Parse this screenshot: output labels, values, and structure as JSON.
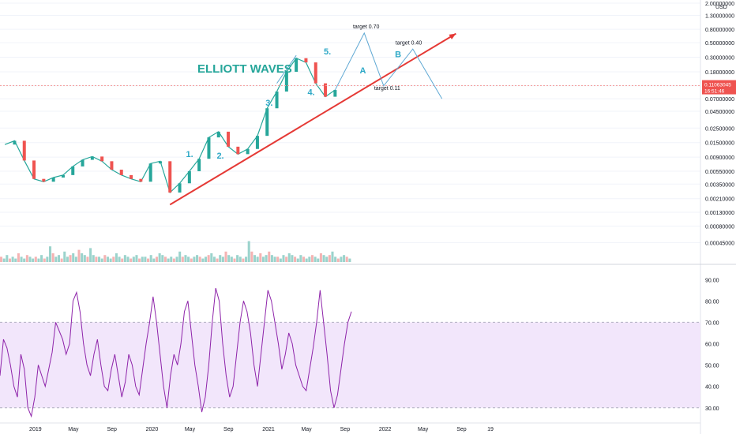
{
  "chart_data": [
    {
      "type": "line",
      "title": "",
      "annotation_title": "ELLIOTT WAVES",
      "y_scale": "log",
      "currency": "USD",
      "ylim": [
        0.0003,
        2.0
      ],
      "y_ticks": [
        "2.00000000",
        "1.30000000",
        "0.80000000",
        "0.50000000",
        "0.30000000",
        "0.18000000",
        "0.11000000",
        "0.07000000",
        "0.04500000",
        "0.02500000",
        "0.01500000",
        "0.00900000",
        "0.00550000",
        "0.00350000",
        "0.00210000",
        "0.00130000",
        "0.00080000",
        "0.00045000"
      ],
      "y_tick_values": [
        2.0,
        1.3,
        0.8,
        0.5,
        0.3,
        0.18,
        0.11,
        0.07,
        0.045,
        0.025,
        0.015,
        0.009,
        0.0055,
        0.0035,
        0.0021,
        0.0013,
        0.0008,
        0.00045
      ],
      "x_ticks": [
        "2019",
        "May",
        "Sep",
        "2020",
        "May",
        "Sep",
        "2021",
        "May",
        "Sep",
        "2022",
        "May",
        "Sep",
        "19"
      ],
      "last_price": {
        "value": "0.11063045",
        "countdown": "16:51:46"
      },
      "wave_labels": [
        "1.",
        "2.",
        "3.",
        "4.",
        "5.",
        "A",
        "B"
      ],
      "target_labels": [
        "target 0.70",
        "target 0.11",
        "target 0.40"
      ],
      "series": [
        {
          "x": [
            "2018-10",
            "2018-11",
            "2018-12",
            "2019-01",
            "2019-02",
            "2019-03",
            "2019-04",
            "2019-05",
            "2019-06",
            "2019-07",
            "2019-08",
            "2019-09",
            "2019-10",
            "2019-11",
            "2019-12",
            "2020-01",
            "2020-02",
            "2020-03",
            "2020-04",
            "2020-05",
            "2020-06",
            "2020-07",
            "2020-08",
            "2020-09",
            "2020-10",
            "2020-11",
            "2020-12",
            "2021-01",
            "2021-02",
            "2021-03",
            "2021-04",
            "2021-05",
            "2021-06",
            "2021-07",
            "2021-08"
          ],
          "values": [
            0.014,
            0.016,
            0.008,
            0.0042,
            0.0038,
            0.0044,
            0.0048,
            0.0065,
            0.0082,
            0.0092,
            0.0078,
            0.0058,
            0.0048,
            0.0042,
            0.0038,
            0.0072,
            0.0078,
            0.0026,
            0.0036,
            0.0055,
            0.0085,
            0.018,
            0.022,
            0.013,
            0.01,
            0.012,
            0.019,
            0.05,
            0.09,
            0.18,
            0.29,
            0.25,
            0.12,
            0.075,
            0.095
          ]
        }
      ],
      "projection": {
        "x": [
          "2021-08",
          "2021-11",
          "2022-01",
          "2022-04",
          "2022-07"
        ],
        "values": [
          0.095,
          0.7,
          0.11,
          0.4,
          0.07
        ]
      },
      "trendline": {
        "x": [
          "2020-03",
          "2022-06"
        ],
        "values": [
          0.0017,
          0.65
        ]
      },
      "volume": [
        3,
        2,
        4,
        2,
        3,
        2,
        5,
        3,
        2,
        4,
        3,
        2,
        3,
        2,
        4,
        2,
        3,
        9,
        5,
        3,
        4,
        2,
        6,
        3,
        4,
        5,
        3,
        7,
        5,
        4,
        3,
        8,
        4,
        3,
        3,
        2,
        4,
        3,
        2,
        3,
        5,
        3,
        2,
        4,
        3,
        2,
        3,
        4,
        2,
        3,
        3,
        2,
        4,
        2,
        3,
        5,
        4,
        3,
        2,
        3,
        2,
        3,
        6,
        3,
        4,
        3,
        2,
        3,
        4,
        3,
        2,
        3,
        4,
        5,
        3,
        2,
        4,
        3,
        6,
        4,
        3,
        2,
        4,
        3,
        2,
        3,
        12,
        6,
        4,
        3,
        5,
        3,
        4,
        6,
        4,
        3,
        3,
        2,
        4,
        3,
        5,
        4,
        3,
        2,
        4,
        3,
        2,
        3,
        4,
        3,
        2,
        5,
        4,
        3,
        4,
        6,
        3,
        2,
        3,
        4,
        3,
        2
      ]
    },
    {
      "type": "line",
      "ylim": [
        24,
        96
      ],
      "y_ticks": [
        "90.00",
        "80.00",
        "70.00",
        "60.00",
        "50.00",
        "40.00",
        "30.00"
      ],
      "y_tick_values": [
        90,
        80,
        70,
        60,
        50,
        40,
        30
      ],
      "band": [
        30,
        70
      ],
      "series": [
        {
          "values": [
            45,
            62,
            58,
            50,
            40,
            35,
            55,
            48,
            30,
            26,
            35,
            50,
            45,
            40,
            48,
            56,
            70,
            66,
            62,
            55,
            60,
            80,
            84,
            75,
            60,
            50,
            45,
            55,
            62,
            50,
            40,
            38,
            48,
            55,
            45,
            35,
            42,
            55,
            50,
            40,
            36,
            48,
            60,
            70,
            82,
            70,
            55,
            40,
            30,
            45,
            55,
            50,
            60,
            75,
            80,
            65,
            50,
            40,
            28,
            35,
            50,
            70,
            86,
            80,
            60,
            45,
            35,
            40,
            55,
            70,
            80,
            75,
            65,
            50,
            40,
            55,
            70,
            85,
            80,
            70,
            60,
            48,
            55,
            65,
            60,
            50,
            45,
            40,
            38,
            48,
            58,
            70,
            85,
            70,
            55,
            38,
            30,
            36,
            48,
            60,
            70,
            75
          ]
        }
      ]
    }
  ]
}
